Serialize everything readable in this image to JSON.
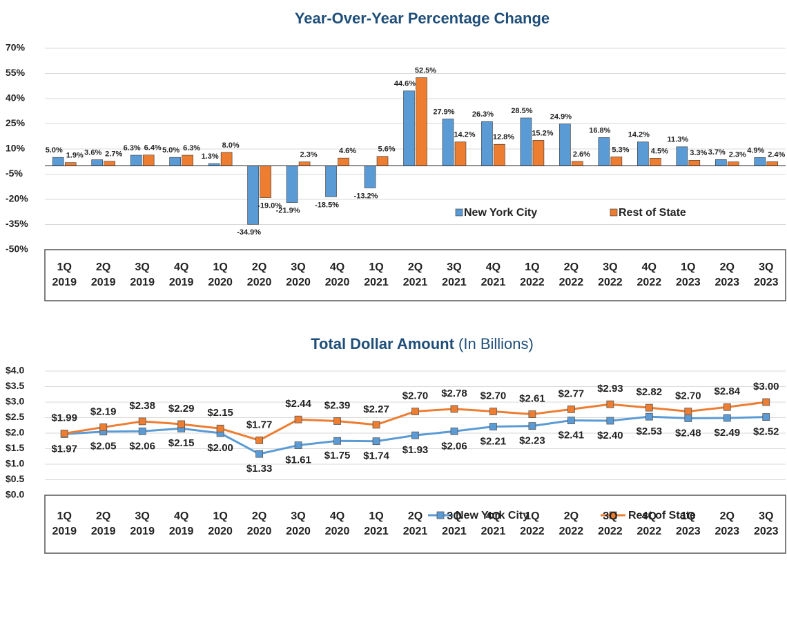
{
  "chart_data": [
    {
      "type": "bar",
      "title": "Year-Over-Year Percentage Change",
      "categories": [
        "1Q 2019",
        "2Q 2019",
        "3Q 2019",
        "4Q 2019",
        "1Q 2020",
        "2Q 2020",
        "3Q 2020",
        "4Q 2020",
        "1Q 2021",
        "2Q 2021",
        "3Q 2021",
        "4Q 2021",
        "1Q 2022",
        "2Q 2022",
        "3Q 2022",
        "4Q 2022",
        "1Q 2023",
        "2Q 2023",
        "3Q 2023"
      ],
      "series": [
        {
          "name": "New York City",
          "color": "#5b9bd5",
          "values": [
            5.0,
            3.6,
            6.3,
            5.0,
            1.3,
            -34.9,
            -21.9,
            -18.5,
            -13.2,
            44.6,
            27.9,
            26.3,
            28.5,
            24.9,
            16.8,
            14.2,
            11.3,
            3.7,
            4.9
          ],
          "value_labels": [
            "5.0%",
            "3.6%",
            "6.3%",
            "5.0%",
            "1.3%",
            "-34.9%",
            "-21.9%",
            "-18.5%",
            "-13.2%",
            "44.6%",
            "27.9%",
            "26.3%",
            "28.5%",
            "24.9%",
            "16.8%",
            "14.2%",
            "11.3%",
            "3.7%",
            "4.9%"
          ]
        },
        {
          "name": "Rest of State",
          "color": "#ed7d31",
          "values": [
            1.9,
            2.7,
            6.4,
            6.3,
            8.0,
            -19.0,
            2.3,
            4.6,
            5.6,
            52.5,
            14.2,
            12.8,
            15.2,
            2.6,
            5.3,
            4.5,
            3.3,
            2.3,
            2.4
          ],
          "value_labels": [
            "1.9%",
            "2.7%",
            "6.4%",
            "6.3%",
            "8.0%",
            "-19.0%",
            "2.3%",
            "4.6%",
            "5.6%",
            "52.5%",
            "14.2%",
            "12.8%",
            "15.2%",
            "2.6%",
            "5.3%",
            "4.5%",
            "3.3%",
            "2.3%",
            "2.4%"
          ]
        }
      ],
      "ylim": [
        -50,
        70
      ],
      "yticks": [
        {
          "value": -50,
          "label": "-50%"
        },
        {
          "value": -35,
          "label": "-35%"
        },
        {
          "value": -20,
          "label": "-20%"
        },
        {
          "value": -5,
          "label": "-5%"
        },
        {
          "value": 10,
          "label": "10%"
        },
        {
          "value": 25,
          "label": "25%"
        },
        {
          "value": 40,
          "label": "40%"
        },
        {
          "value": 55,
          "label": "55%"
        },
        {
          "value": 70,
          "label": "70%"
        }
      ],
      "grid": true,
      "legend": "lower right"
    },
    {
      "type": "line",
      "title": "Total Dollar Amount",
      "subtitle": "(In Billions)",
      "categories": [
        "1Q 2019",
        "2Q 2019",
        "3Q 2019",
        "4Q 2019",
        "1Q 2020",
        "2Q 2020",
        "3Q 2020",
        "4Q 2020",
        "1Q 2021",
        "2Q 2021",
        "3Q 2021",
        "4Q 2021",
        "1Q 2022",
        "2Q 2022",
        "3Q 2022",
        "4Q 2022",
        "1Q 2023",
        "2Q 2023",
        "3Q 2023"
      ],
      "series": [
        {
          "name": "New York City",
          "color": "#5b9bd5",
          "values": [
            1.97,
            2.05,
            2.06,
            2.15,
            2.0,
            1.33,
            1.61,
            1.75,
            1.74,
            1.93,
            2.06,
            2.21,
            2.23,
            2.41,
            2.4,
            2.53,
            2.48,
            2.49,
            2.52
          ],
          "value_labels": [
            "$1.97",
            "$2.05",
            "$2.06",
            "$2.15",
            "$2.00",
            "$1.33",
            "$1.61",
            "$1.75",
            "$1.74",
            "$1.93",
            "$2.06",
            "$2.21",
            "$2.23",
            "$2.41",
            "$2.40",
            "$2.53",
            "$2.48",
            "$2.49",
            "$2.52"
          ]
        },
        {
          "name": "Rest of State",
          "color": "#ed7d31",
          "values": [
            1.99,
            2.19,
            2.38,
            2.29,
            2.15,
            1.77,
            2.44,
            2.39,
            2.27,
            2.7,
            2.78,
            2.7,
            2.61,
            2.77,
            2.93,
            2.82,
            2.7,
            2.84,
            3.0
          ],
          "value_labels": [
            "$1.99",
            "$2.19",
            "$2.38",
            "$2.29",
            "$2.15",
            "$1.77",
            "$2.44",
            "$2.39",
            "$2.27",
            "$2.70",
            "$2.78",
            "$2.70",
            "$2.61",
            "$2.77",
            "$2.93",
            "$2.82",
            "$2.70",
            "$2.84",
            "$3.00"
          ]
        }
      ],
      "ylim": [
        0,
        4
      ],
      "yticks": [
        {
          "value": 0,
          "label": "$0.0"
        },
        {
          "value": 0.5,
          "label": "$0.5"
        },
        {
          "value": 1,
          "label": "$1.0"
        },
        {
          "value": 1.5,
          "label": "$1.5"
        },
        {
          "value": 2,
          "label": "$2.0"
        },
        {
          "value": 2.5,
          "label": "$2.5"
        },
        {
          "value": 3,
          "label": "$3.0"
        },
        {
          "value": 3.5,
          "label": "$3.5"
        },
        {
          "value": 4,
          "label": "$4.0"
        }
      ],
      "grid": true,
      "legend": "lower right"
    }
  ]
}
